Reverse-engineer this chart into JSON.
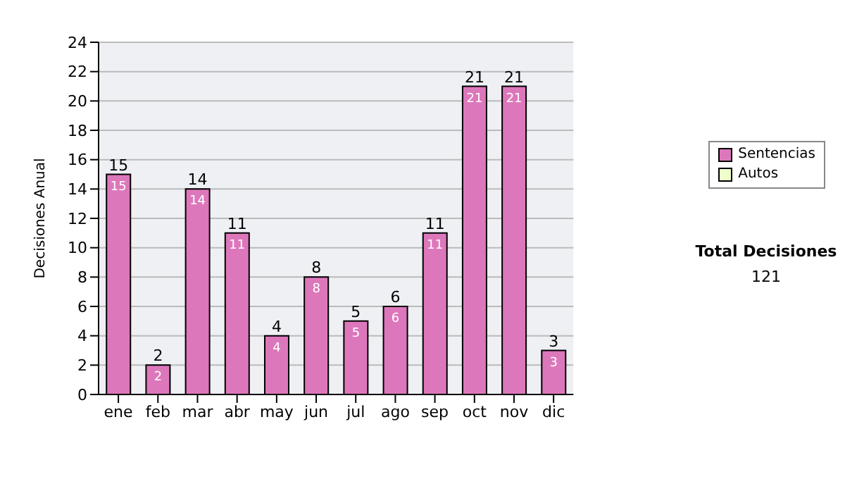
{
  "chart_data": {
    "type": "bar",
    "stacked": true,
    "ylabel": "Decisiones Anual",
    "categories": [
      "ene",
      "feb",
      "mar",
      "abr",
      "may",
      "jun",
      "jul",
      "ago",
      "sep",
      "oct",
      "nov",
      "dic"
    ],
    "series": [
      {
        "name": "Sentencias",
        "color": "#dd77bb",
        "values": [
          15,
          2,
          14,
          11,
          4,
          8,
          5,
          6,
          11,
          21,
          21,
          3
        ],
        "value_labels": [
          "15",
          "2",
          "14",
          "11",
          "4",
          "8",
          "5",
          "6",
          "11",
          "21",
          "21",
          "3"
        ]
      },
      {
        "name": "Autos",
        "color": "#eeffcc",
        "values": [
          0,
          0,
          0,
          0,
          0,
          0,
          0,
          0,
          0,
          0,
          0,
          0
        ]
      }
    ],
    "totals": [
      "15",
      "2",
      "14",
      "11",
      "4",
      "8",
      "5",
      "6",
      "11",
      "21",
      "21",
      "3"
    ],
    "ylim": [
      0,
      24
    ],
    "yticks": [
      0,
      2,
      4,
      6,
      8,
      10,
      12,
      14,
      16,
      18,
      20,
      22,
      24
    ],
    "grid": "y",
    "legend": "right",
    "annotations": [
      "Total Decisiones",
      "121"
    ]
  }
}
